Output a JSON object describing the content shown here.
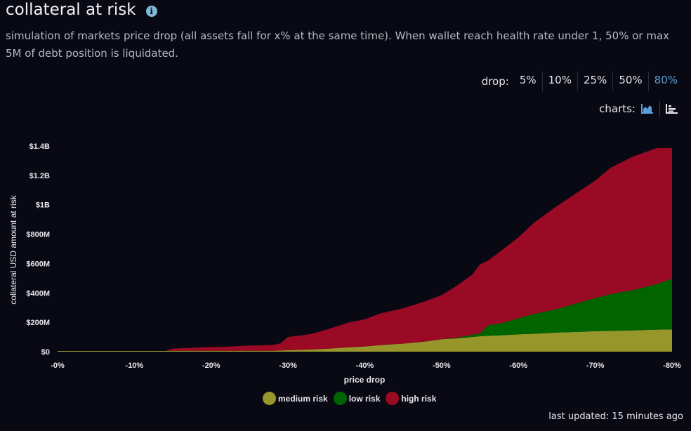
{
  "header": {
    "title": "collateral at risk",
    "info_icon": "info-icon",
    "subtitle": "simulation of markets price drop (all assets fall for x% at the same time). When wallet reach health rate under 1, 50% or max 5M of debt position is liquidated."
  },
  "drop_selector": {
    "label": "drop:",
    "options": [
      "5%",
      "10%",
      "25%",
      "50%",
      "80%"
    ],
    "active": "80%"
  },
  "chart_type_selector": {
    "label": "charts:",
    "options": [
      {
        "icon": "area-chart-icon",
        "active": true
      },
      {
        "icon": "bar-chart-icon",
        "active": false
      }
    ]
  },
  "colors": {
    "background": "#090914",
    "medium_risk": "#96962b",
    "low_risk": "#006400",
    "high_risk": "#9b0a24",
    "active_option": "#5a9fd6"
  },
  "chart_data": {
    "type": "area",
    "stacked": true,
    "xlabel": "price drop",
    "ylabel": "collateral USD amount at risk",
    "x_ticks": [
      "-0%",
      "-10%",
      "-20%",
      "-30%",
      "-40%",
      "-50%",
      "-60%",
      "-70%",
      "-80%"
    ],
    "y_ticks": [
      "$0",
      "$200M",
      "$400M",
      "$600M",
      "$800M",
      "$1B",
      "$1.2B",
      "$1.4B"
    ],
    "y_tick_values": [
      0,
      200,
      400,
      600,
      800,
      1000,
      1200,
      1400
    ],
    "y_unit": "million USD",
    "xlim": [
      0,
      80
    ],
    "ylim": [
      0,
      1400
    ],
    "grid": false,
    "legend_position": "bottom",
    "x": [
      0,
      5,
      10,
      14,
      15,
      20,
      22,
      25,
      28,
      29,
      30,
      33,
      35,
      38,
      40,
      42,
      45,
      48,
      50,
      52,
      54,
      55,
      56,
      58,
      60,
      62,
      65,
      68,
      70,
      72,
      75,
      78,
      80
    ],
    "series": [
      {
        "name": "medium risk",
        "values": [
          5,
          5,
          5,
          5,
          6,
          6,
          6,
          6,
          6,
          8,
          10,
          15,
          20,
          30,
          35,
          45,
          55,
          70,
          85,
          90,
          100,
          105,
          108,
          112,
          118,
          122,
          130,
          135,
          140,
          142,
          145,
          150,
          152
        ]
      },
      {
        "name": "low risk",
        "values": [
          0,
          0,
          0,
          0,
          0,
          0,
          0,
          0,
          0,
          0,
          0,
          0,
          0,
          0,
          0,
          0,
          0,
          0,
          0,
          5,
          15,
          20,
          70,
          85,
          110,
          135,
          160,
          200,
          225,
          250,
          275,
          310,
          345
        ]
      },
      {
        "name": "high risk",
        "values": [
          0,
          0,
          0,
          0,
          15,
          25,
          28,
          35,
          40,
          48,
          90,
          105,
          130,
          170,
          185,
          215,
          240,
          275,
          300,
          355,
          410,
          470,
          440,
          500,
          550,
          620,
          700,
          760,
          800,
          860,
          910,
          925,
          890
        ]
      }
    ]
  },
  "footer": {
    "last_updated": "last updated: 15 minutes ago"
  }
}
